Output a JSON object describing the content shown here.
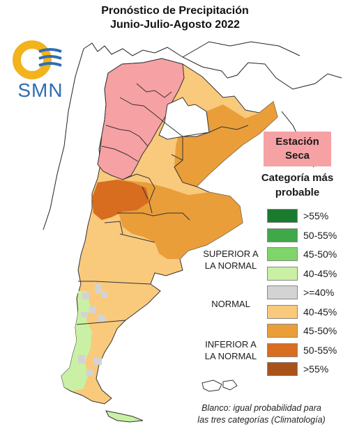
{
  "title": {
    "line1": "Pronóstico de Precipitación",
    "line2": "Junio-Julio-Agosto 2022"
  },
  "logo": {
    "text": "SMN"
  },
  "season_label": {
    "line1": "Estación",
    "line2": "Seca"
  },
  "legend": {
    "heading_line1": "Categoría más",
    "heading_line2": "probable",
    "groups": {
      "superior_line1": "SUPERIOR A",
      "superior_line2": "LA NORMAL",
      "normal": "NORMAL",
      "inferior_line1": "INFERIOR A",
      "inferior_line2": "LA NORMAL"
    },
    "items": [
      {
        "label": ">55%",
        "color": "#1a7a2e"
      },
      {
        "label": "50-55%",
        "color": "#3fa94a"
      },
      {
        "label": "45-50%",
        "color": "#7fd46a"
      },
      {
        "label": "40-45%",
        "color": "#c9f0a4"
      },
      {
        "label": ">=40%",
        "color": "#d3d3d3"
      },
      {
        "label": "40-45%",
        "color": "#f9c97c"
      },
      {
        "label": "45-50%",
        "color": "#e99e3a"
      },
      {
        "label": "50-55%",
        "color": "#d86d1f"
      },
      {
        "label": ">55%",
        "color": "#a9531a"
      }
    ]
  },
  "dry_season_color": "#f6a1a4",
  "note": {
    "line1": "Blanco: igual probabilidad para",
    "line2": "las tres categorías (Climatología)"
  }
}
